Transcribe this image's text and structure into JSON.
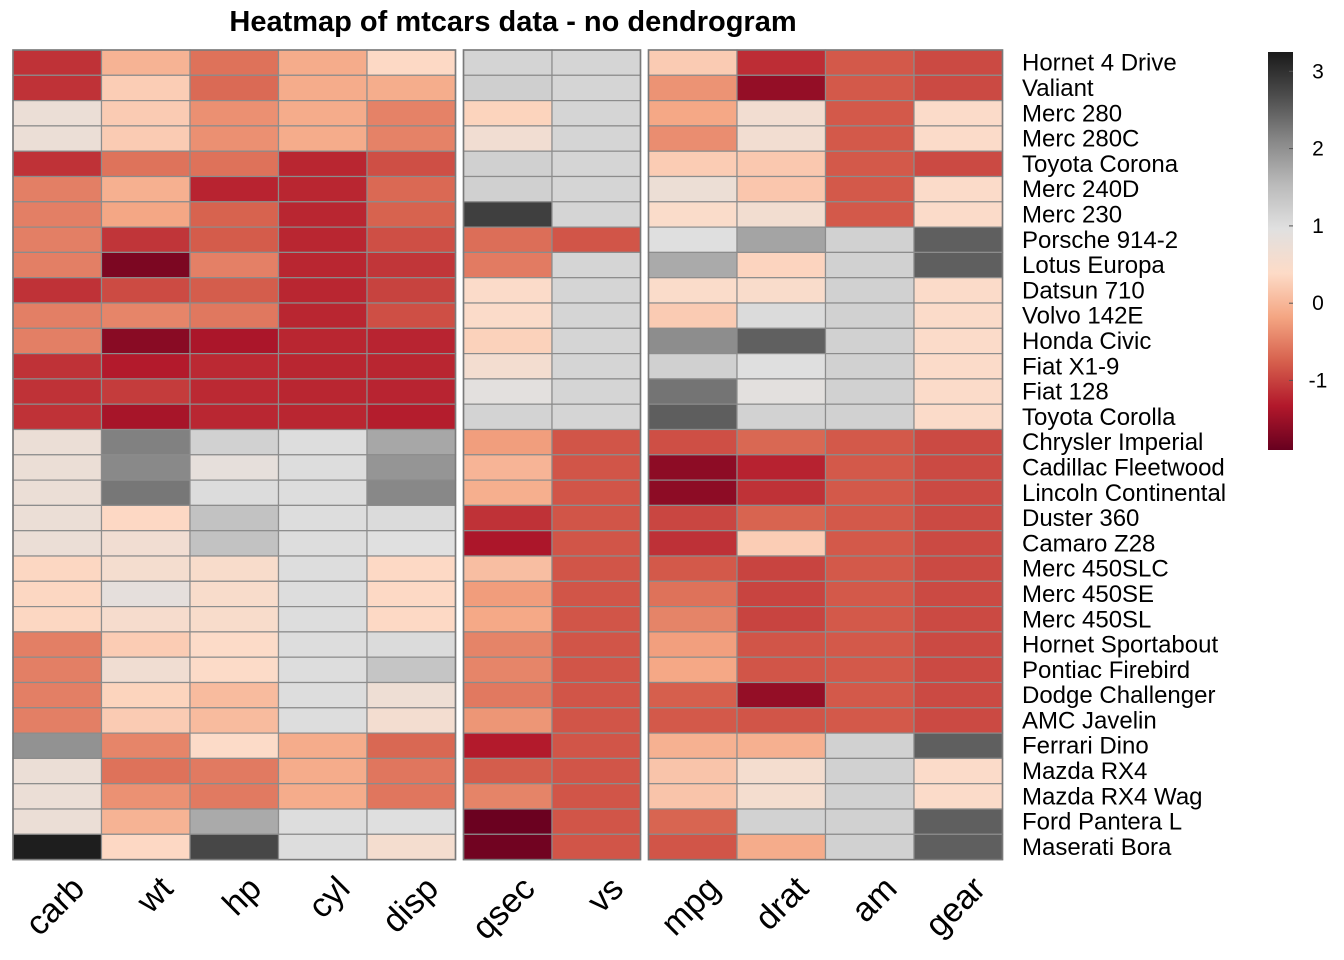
{
  "chart_data": {
    "type": "heatmap",
    "title": "Heatmap of mtcars data - no dendrogram",
    "columns": [
      "carb",
      "wt",
      "hp",
      "cyl",
      "disp",
      "qsec",
      "vs",
      "mpg",
      "drat",
      "am",
      "gear"
    ],
    "column_groups": [
      5,
      2,
      4
    ],
    "rows": [
      "Hornet 4 Drive",
      "Valiant",
      "Merc 280",
      "Merc 280C",
      "Toyota Corona",
      "Merc 240D",
      "Merc 230",
      "Porsche 914-2",
      "Lotus Europa",
      "Datsun 710",
      "Volvo 142E",
      "Honda Civic",
      "Fiat X1-9",
      "Fiat 128",
      "Toyota Corolla",
      "Chrysler Imperial",
      "Cadillac Fleetwood",
      "Lincoln Continental",
      "Duster 360",
      "Camaro Z28",
      "Merc 450SLC",
      "Merc 450SE",
      "Merc 450SL",
      "Hornet Sportabout",
      "Pontiac Firebird",
      "Dodge Challenger",
      "AMC Javelin",
      "Ferrari Dino",
      "Mazda RX4",
      "Mazda RX4 Wag",
      "Ford Pantera L",
      "Maserati Bora"
    ],
    "row_groups": [
      15,
      12,
      5
    ],
    "values": [
      [
        -1.12,
        -0.03,
        -0.61,
        -0.11,
        0.37,
        1.14,
        1.12,
        0.22,
        -1.16,
        -0.81,
        -0.93
      ],
      [
        -1.12,
        0.24,
        -0.67,
        -0.11,
        -0.1,
        1.22,
        1.12,
        -0.33,
        -1.56,
        -0.81,
        -0.93
      ],
      [
        0.74,
        0.22,
        -0.36,
        -0.11,
        -0.47,
        0.31,
        1.12,
        -0.15,
        0.61,
        -0.81,
        0.43
      ],
      [
        0.74,
        0.22,
        -0.36,
        -0.11,
        -0.47,
        0.63,
        1.12,
        -0.38,
        0.61,
        -0.81,
        0.43
      ],
      [
        -1.12,
        -0.6,
        -0.61,
        -1.22,
        -0.89,
        1.2,
        1.12,
        0.23,
        0.19,
        -0.81,
        -0.93
      ],
      [
        -0.5,
        -0.07,
        -1.24,
        -1.22,
        -0.68,
        1.2,
        1.12,
        0.72,
        0.17,
        -0.81,
        0.43
      ],
      [
        -0.5,
        -0.16,
        -0.73,
        -1.22,
        -0.73,
        2.83,
        1.12,
        0.45,
        0.6,
        -0.81,
        0.43
      ],
      [
        -0.5,
        -1.1,
        -0.79,
        -1.22,
        -0.89,
        -0.64,
        -0.84,
        0.98,
        1.78,
        1.19,
        2.5
      ],
      [
        -0.5,
        -1.74,
        -0.49,
        -1.22,
        -1.09,
        -0.53,
        1.12,
        1.71,
        0.32,
        1.19,
        2.5
      ],
      [
        -1.12,
        -0.92,
        -0.78,
        -1.22,
        -0.99,
        0.43,
        1.12,
        0.45,
        0.47,
        1.19,
        0.43
      ],
      [
        -0.5,
        -0.45,
        -0.56,
        -1.22,
        -0.89,
        0.43,
        1.12,
        0.22,
        1.03,
        1.19,
        0.43
      ],
      [
        -0.5,
        -1.64,
        -1.38,
        -1.22,
        -1.23,
        0.29,
        1.12,
        2.04,
        2.49,
        1.19,
        0.43
      ],
      [
        -1.12,
        -1.31,
        -1.19,
        -1.22,
        -1.22,
        0.59,
        1.12,
        1.2,
        0.97,
        1.19,
        0.43
      ],
      [
        -1.12,
        -1.04,
        -1.19,
        -1.22,
        -1.23,
        0.91,
        1.12,
        2.29,
        0.91,
        1.19,
        0.43
      ],
      [
        -1.12,
        -1.41,
        -1.21,
        -1.22,
        -1.29,
        1.15,
        1.12,
        2.51,
        1.17,
        1.19,
        0.43
      ],
      [
        0.74,
        2.16,
        1.19,
        1.01,
        1.75,
        -0.24,
        -0.84,
        -0.89,
        -0.69,
        -0.81,
        -0.93
      ],
      [
        0.74,
        2.08,
        0.85,
        1.01,
        1.95,
        -0.02,
        -0.84,
        -1.61,
        -1.25,
        -0.81,
        -0.93
      ],
      [
        0.74,
        2.26,
        1.02,
        1.01,
        2.09,
        -0.08,
        -0.84,
        -1.61,
        -1.12,
        -0.81,
        -0.93
      ],
      [
        0.74,
        0.36,
        1.41,
        1.01,
        1.04,
        -1.12,
        -0.84,
        -0.96,
        -0.72,
        -0.81,
        -0.93
      ],
      [
        0.74,
        0.63,
        1.41,
        1.01,
        0.96,
        -1.37,
        -0.84,
        -1.13,
        0.24,
        -0.81,
        -0.93
      ],
      [
        0.35,
        0.57,
        0.49,
        1.01,
        0.37,
        0.08,
        -0.84,
        -0.81,
        -0.98,
        -0.81,
        -0.93
      ],
      [
        0.35,
        0.87,
        0.49,
        1.01,
        0.37,
        -0.25,
        -0.84,
        -0.61,
        -0.98,
        -0.81,
        -0.93
      ],
      [
        0.35,
        0.52,
        0.49,
        1.01,
        0.37,
        -0.14,
        -0.84,
        -0.46,
        -0.98,
        -0.81,
        -0.93
      ],
      [
        -0.5,
        0.23,
        0.41,
        1.01,
        1.04,
        -0.46,
        -0.84,
        -0.23,
        -0.84,
        -0.81,
        -0.93
      ],
      [
        -0.5,
        0.64,
        0.41,
        1.01,
        1.37,
        -0.45,
        -0.84,
        -0.15,
        -0.84,
        -0.81,
        -0.93
      ],
      [
        -0.5,
        0.31,
        0.05,
        1.01,
        0.69,
        -0.55,
        -0.84,
        -0.76,
        -1.56,
        -0.81,
        -0.93
      ],
      [
        -0.5,
        0.22,
        0.05,
        1.01,
        0.59,
        -0.31,
        -0.84,
        -0.81,
        -0.84,
        -0.81,
        -0.93
      ],
      [
        1.98,
        -0.45,
        0.41,
        -0.11,
        -0.69,
        -1.31,
        -0.84,
        -0.06,
        -0.07,
        1.19,
        2.5
      ],
      [
        0.74,
        -0.61,
        -0.54,
        -0.11,
        -0.57,
        -0.78,
        -0.84,
        0.15,
        0.57,
        1.19,
        0.43
      ],
      [
        0.74,
        -0.35,
        -0.54,
        -0.11,
        -0.57,
        -0.46,
        -0.84,
        0.15,
        0.57,
        1.19,
        0.43
      ],
      [
        0.74,
        -0.03,
        1.71,
        1.01,
        0.97,
        -1.87,
        -0.84,
        -0.71,
        1.17,
        1.19,
        2.5
      ],
      [
        3.21,
        0.36,
        2.75,
        1.01,
        0.57,
        -1.82,
        -0.84,
        -0.84,
        -0.11,
        1.19,
        2.5
      ]
    ],
    "color_scale": {
      "colors": [
        "#67001f",
        "#b2182b",
        "#d6604d",
        "#f4a582",
        "#fddbc7",
        "#e0e0e0",
        "#bababa",
        "#878787",
        "#4d4d4d",
        "#1a1a1a"
      ],
      "min": -1.9,
      "max": 3.25
    },
    "legend": {
      "ticks": [
        -1,
        0,
        1,
        2,
        3
      ],
      "tick_labels": [
        "-1",
        "0",
        "1",
        "2",
        "3"
      ],
      "position": "right"
    },
    "xlabel": "",
    "ylabel": ""
  }
}
